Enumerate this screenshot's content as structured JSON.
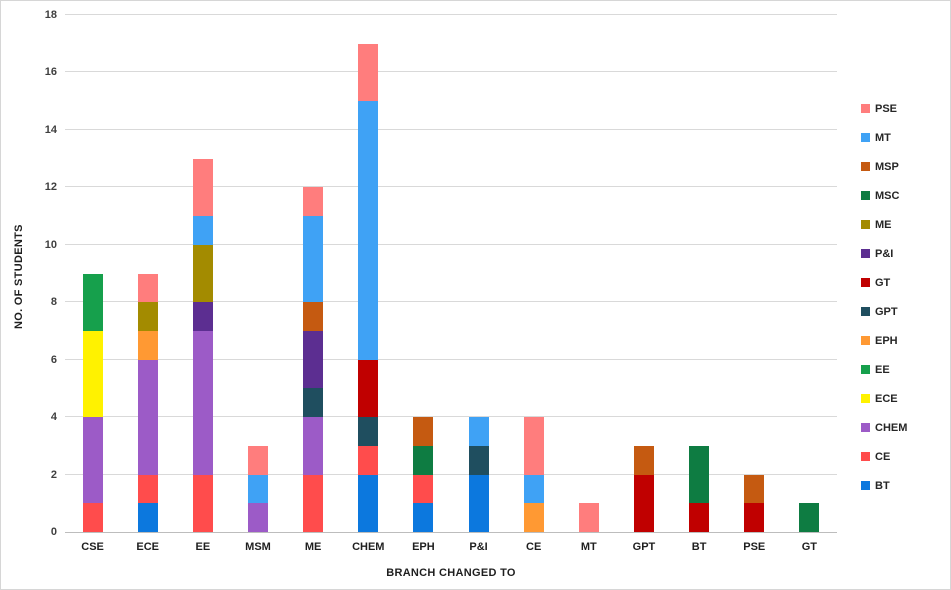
{
  "chart_data": {
    "type": "bar",
    "subtype": "stacked",
    "title": "",
    "xlabel": "BRANCH CHANGED TO",
    "ylabel": "NO. OF STUDENTS",
    "ylim": [
      0,
      18
    ],
    "yticks": [
      0,
      2,
      4,
      6,
      8,
      10,
      12,
      14,
      16,
      18
    ],
    "grid": true,
    "legend_position": "right",
    "categories": [
      "CSE",
      "ECE",
      "EE",
      "MSM",
      "ME",
      "CHEM",
      "EPH",
      "P&I",
      "CE",
      "MT",
      "GPT",
      "BT",
      "PSE",
      "GT"
    ],
    "series": [
      {
        "name": "BT",
        "color": "#0c78de",
        "values": [
          0,
          1,
          0,
          0,
          0,
          2,
          1,
          2,
          0,
          0,
          0,
          0,
          0,
          0
        ]
      },
      {
        "name": "CE",
        "color": "#ff4c4c",
        "values": [
          1,
          1,
          2,
          0,
          2,
          1,
          1,
          0,
          0,
          0,
          0,
          0,
          0,
          0
        ]
      },
      {
        "name": "CHEM",
        "color": "#9c5bc7",
        "values": [
          3,
          4,
          5,
          1,
          2,
          0,
          0,
          0,
          0,
          0,
          0,
          0,
          0,
          0
        ]
      },
      {
        "name": "ECE",
        "color": "#fff200",
        "values": [
          3,
          0,
          0,
          0,
          0,
          0,
          0,
          0,
          0,
          0,
          0,
          0,
          0,
          0
        ]
      },
      {
        "name": "EE",
        "color": "#16a04c",
        "values": [
          2,
          0,
          0,
          0,
          0,
          0,
          0,
          0,
          0,
          0,
          0,
          0,
          0,
          0
        ]
      },
      {
        "name": "EPH",
        "color": "#ff9933",
        "values": [
          0,
          1,
          0,
          0,
          0,
          0,
          0,
          0,
          1,
          0,
          0,
          0,
          0,
          0
        ]
      },
      {
        "name": "GPT",
        "color": "#1f4e5f",
        "values": [
          0,
          0,
          0,
          0,
          1,
          1,
          0,
          1,
          0,
          0,
          0,
          0,
          0,
          0
        ]
      },
      {
        "name": "GT",
        "color": "#c00000",
        "values": [
          0,
          0,
          0,
          0,
          0,
          2,
          0,
          0,
          0,
          0,
          2,
          1,
          1,
          0
        ]
      },
      {
        "name": "P&I",
        "color": "#5c2e91",
        "values": [
          0,
          0,
          1,
          0,
          2,
          0,
          0,
          0,
          0,
          0,
          0,
          0,
          0,
          0
        ]
      },
      {
        "name": "ME",
        "color": "#a38b00",
        "values": [
          0,
          1,
          2,
          0,
          0,
          0,
          0,
          0,
          0,
          0,
          0,
          0,
          0,
          0
        ]
      },
      {
        "name": "MSC",
        "color": "#0e7c42",
        "values": [
          0,
          0,
          0,
          0,
          0,
          0,
          1,
          0,
          0,
          0,
          0,
          2,
          0,
          1
        ]
      },
      {
        "name": "MSP",
        "color": "#c55a11",
        "values": [
          0,
          0,
          0,
          0,
          1,
          0,
          1,
          0,
          0,
          0,
          1,
          0,
          1,
          0
        ]
      },
      {
        "name": "MT",
        "color": "#3fa2f5",
        "values": [
          0,
          0,
          1,
          1,
          3,
          9,
          0,
          1,
          1,
          0,
          0,
          0,
          0,
          0
        ]
      },
      {
        "name": "PSE",
        "color": "#ff7d7d",
        "values": [
          0,
          1,
          2,
          1,
          1,
          2,
          0,
          0,
          2,
          1,
          0,
          0,
          0,
          0
        ]
      }
    ],
    "legend": [
      "PSE",
      "MT",
      "MSP",
      "MSC",
      "ME",
      "P&I",
      "GT",
      "GPT",
      "EPH",
      "EE",
      "ECE",
      "CHEM",
      "CE",
      "BT"
    ]
  }
}
